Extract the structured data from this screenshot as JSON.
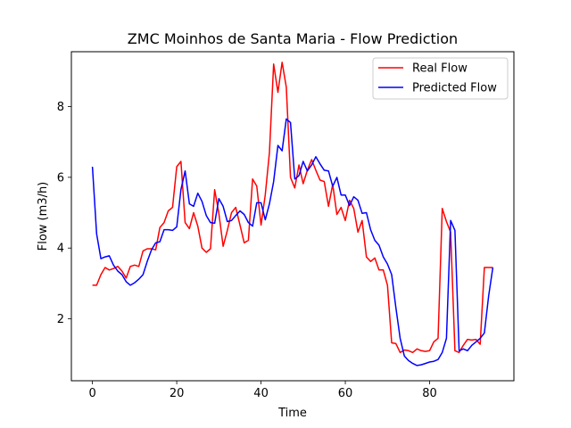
{
  "chart_data": {
    "type": "line",
    "title": "ZMC Moinhos de Santa Maria - Flow Prediction",
    "xlabel": "Time",
    "ylabel": "Flow (m3/h)",
    "xlim": [
      -5,
      100
    ],
    "ylim": [
      0.25,
      9.55
    ],
    "xticks": [
      0,
      20,
      40,
      60,
      80
    ],
    "yticks": [
      2,
      4,
      6,
      8
    ],
    "grid": false,
    "legend_position": "top-right",
    "x": [
      0,
      1,
      2,
      3,
      4,
      5,
      6,
      7,
      8,
      9,
      10,
      11,
      12,
      13,
      14,
      15,
      16,
      17,
      18,
      19,
      20,
      21,
      22,
      23,
      24,
      25,
      26,
      27,
      28,
      29,
      30,
      31,
      32,
      33,
      34,
      35,
      36,
      37,
      38,
      39,
      40,
      41,
      42,
      43,
      44,
      45,
      46,
      47,
      48,
      49,
      50,
      51,
      52,
      53,
      54,
      55,
      56,
      57,
      58,
      59,
      60,
      61,
      62,
      63,
      64,
      65,
      66,
      67,
      68,
      69,
      70,
      71,
      72,
      73,
      74,
      75,
      76,
      77,
      78,
      79,
      80,
      81,
      82,
      83,
      84,
      85,
      86,
      87,
      88,
      89,
      90,
      91,
      92,
      93,
      94,
      95
    ],
    "series": [
      {
        "name": "Real Flow",
        "color": "#ff0000",
        "values": [
          2.95,
          2.95,
          3.25,
          3.45,
          3.38,
          3.42,
          3.48,
          3.35,
          3.15,
          3.48,
          3.52,
          3.48,
          3.92,
          3.98,
          3.98,
          3.95,
          4.58,
          4.72,
          5.05,
          5.15,
          6.3,
          6.45,
          4.72,
          4.55,
          5.0,
          4.62,
          4.0,
          3.88,
          3.98,
          5.65,
          4.98,
          4.05,
          4.5,
          5.0,
          5.15,
          4.65,
          4.15,
          4.22,
          5.95,
          5.75,
          4.65,
          5.5,
          6.7,
          9.2,
          8.4,
          9.25,
          8.55,
          6.0,
          5.7,
          6.35,
          5.82,
          6.2,
          6.5,
          6.2,
          5.92,
          5.88,
          5.18,
          5.8,
          4.95,
          5.15,
          4.78,
          5.35,
          5.12,
          4.45,
          4.78,
          3.75,
          3.62,
          3.72,
          3.38,
          3.38,
          2.95,
          1.32,
          1.3,
          1.05,
          1.12,
          1.1,
          1.05,
          1.15,
          1.1,
          1.08,
          1.1,
          1.35,
          1.45,
          5.12,
          4.75,
          4.45,
          1.1,
          1.05,
          1.25,
          1.42,
          1.4,
          1.42,
          1.28,
          3.45,
          3.45,
          3.45
        ]
      },
      {
        "name": "Predicted Flow",
        "color": "#0000ff",
        "values": [
          6.3,
          4.4,
          3.7,
          3.75,
          3.78,
          3.52,
          3.35,
          3.25,
          3.05,
          2.95,
          3.02,
          3.12,
          3.25,
          3.62,
          3.95,
          4.15,
          4.18,
          4.52,
          4.52,
          4.5,
          4.6,
          5.65,
          6.18,
          5.25,
          5.18,
          5.55,
          5.32,
          4.92,
          4.72,
          4.7,
          5.4,
          5.18,
          4.75,
          4.78,
          4.92,
          5.05,
          4.95,
          4.72,
          4.62,
          5.28,
          5.28,
          4.8,
          5.25,
          5.88,
          6.9,
          6.75,
          7.65,
          7.55,
          5.95,
          6.05,
          6.45,
          6.18,
          6.35,
          6.58,
          6.38,
          6.2,
          6.18,
          5.75,
          6.0,
          5.5,
          5.5,
          5.2,
          5.45,
          5.35,
          4.98,
          5.0,
          4.52,
          4.22,
          4.08,
          3.75,
          3.55,
          3.25,
          2.32,
          1.45,
          0.95,
          0.82,
          0.74,
          0.68,
          0.7,
          0.74,
          0.78,
          0.8,
          0.85,
          1.05,
          1.45,
          4.78,
          4.5,
          1.1,
          1.15,
          1.1,
          1.25,
          1.35,
          1.45,
          1.6,
          2.65,
          3.45
        ]
      }
    ]
  }
}
